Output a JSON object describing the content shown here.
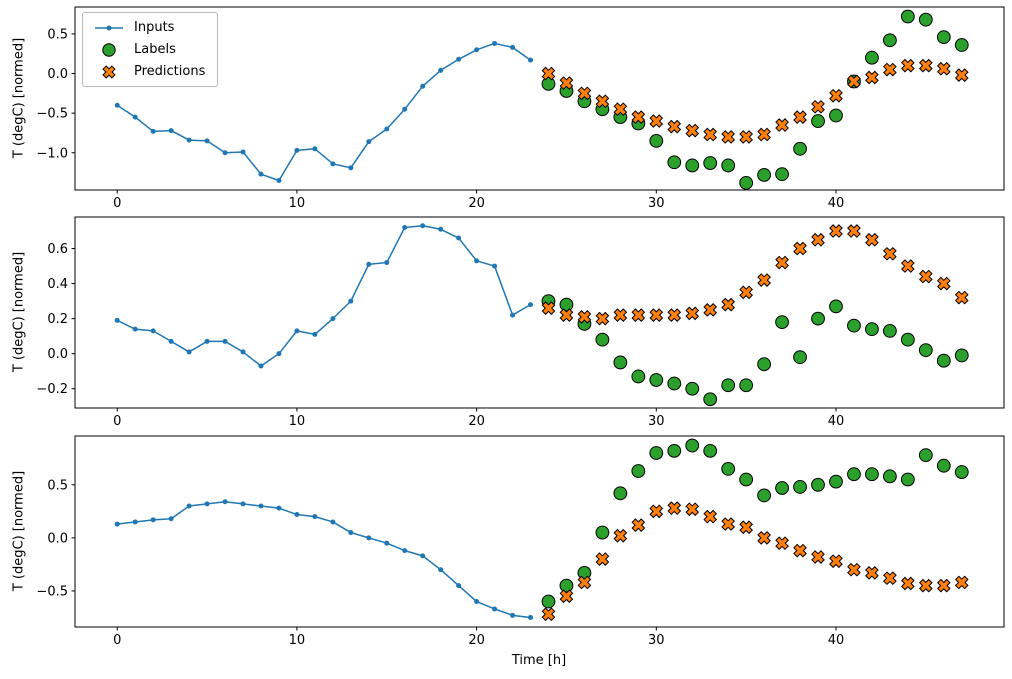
{
  "figure": {
    "background": "#ffffff",
    "frame_color": "#000000"
  },
  "legend": {
    "position": "upper left",
    "items": [
      {
        "label": "Inputs",
        "color": "#1f77b4",
        "marker": "line-dot"
      },
      {
        "label": "Labels",
        "color": "#2ca02c",
        "marker": "circle"
      },
      {
        "label": "Predictions",
        "color": "#ff7f0e",
        "marker": "X"
      }
    ]
  },
  "chart_data": [
    {
      "type": "line",
      "title": "",
      "xlabel": "",
      "ylabel": "T (degC) [normed]",
      "xlim": [
        -2.35,
        49.35
      ],
      "ylim": [
        -1.47,
        0.84
      ],
      "xticks": [
        0,
        10,
        20,
        30,
        40
      ],
      "xticklabels": [
        "0",
        "10",
        "20",
        "30",
        "40"
      ],
      "yticks": [
        -1.0,
        -0.5,
        0.0,
        0.5
      ],
      "yticklabels": [
        "−1.0",
        "−0.5",
        "0.0",
        "0.5"
      ],
      "grid": false,
      "series": [
        {
          "name": "Inputs",
          "type": "line",
          "marker": "dot",
          "color": "#1f77b4",
          "x": [
            0,
            1,
            2,
            3,
            4,
            5,
            6,
            7,
            8,
            9,
            10,
            11,
            12,
            13,
            14,
            15,
            16,
            17,
            18,
            19,
            20,
            21,
            22,
            23
          ],
          "y": [
            -0.4,
            -0.55,
            -0.73,
            -0.72,
            -0.84,
            -0.85,
            -1.0,
            -0.99,
            -1.27,
            -1.35,
            -0.97,
            -0.95,
            -1.14,
            -1.19,
            -0.86,
            -0.7,
            -0.45,
            -0.16,
            0.04,
            0.18,
            0.3,
            0.38,
            0.33,
            0.17
          ]
        },
        {
          "name": "Labels",
          "type": "scatter",
          "marker": "circle",
          "color": "#2ca02c",
          "x": [
            24,
            25,
            26,
            27,
            28,
            29,
            30,
            31,
            32,
            33,
            34,
            35,
            36,
            37,
            38,
            39,
            40,
            41,
            42,
            43,
            44,
            45,
            46,
            47
          ],
          "y": [
            -0.13,
            -0.22,
            -0.35,
            -0.45,
            -0.55,
            -0.63,
            -0.85,
            -1.12,
            -1.16,
            -1.13,
            -1.16,
            -1.38,
            -1.28,
            -1.27,
            -0.95,
            -0.6,
            -0.53,
            -0.1,
            0.2,
            0.42,
            0.72,
            0.68,
            0.46,
            0.36
          ]
        },
        {
          "name": "Predictions",
          "type": "scatter",
          "marker": "X",
          "color": "#ff7f0e",
          "x": [
            24,
            25,
            26,
            27,
            28,
            29,
            30,
            31,
            32,
            33,
            34,
            35,
            36,
            37,
            38,
            39,
            40,
            41,
            42,
            43,
            44,
            45,
            46,
            47
          ],
          "y": [
            0.0,
            -0.12,
            -0.25,
            -0.35,
            -0.45,
            -0.55,
            -0.6,
            -0.67,
            -0.72,
            -0.77,
            -0.8,
            -0.8,
            -0.77,
            -0.65,
            -0.55,
            -0.42,
            -0.28,
            -0.1,
            -0.05,
            0.05,
            0.1,
            0.1,
            0.06,
            -0.02
          ]
        }
      ]
    },
    {
      "type": "line",
      "title": "",
      "xlabel": "",
      "ylabel": "T (degC) [normed]",
      "xlim": [
        -2.35,
        49.35
      ],
      "ylim": [
        -0.31,
        0.78
      ],
      "xticks": [
        0,
        10,
        20,
        30,
        40
      ],
      "xticklabels": [
        "0",
        "10",
        "20",
        "30",
        "40"
      ],
      "yticks": [
        -0.2,
        0.0,
        0.2,
        0.4,
        0.6
      ],
      "yticklabels": [
        "−0.2",
        "0.0",
        "0.2",
        "0.4",
        "0.6"
      ],
      "grid": false,
      "series": [
        {
          "name": "Inputs",
          "type": "line",
          "marker": "dot",
          "color": "#1f77b4",
          "x": [
            0,
            1,
            2,
            3,
            4,
            5,
            6,
            7,
            8,
            9,
            10,
            11,
            12,
            13,
            14,
            15,
            16,
            17,
            18,
            19,
            20,
            21,
            22,
            23
          ],
          "y": [
            0.19,
            0.14,
            0.13,
            0.07,
            0.01,
            0.07,
            0.07,
            0.01,
            -0.07,
            0.0,
            0.13,
            0.11,
            0.2,
            0.3,
            0.51,
            0.52,
            0.72,
            0.73,
            0.71,
            0.66,
            0.53,
            0.5,
            0.22,
            0.28
          ]
        },
        {
          "name": "Labels",
          "type": "scatter",
          "marker": "circle",
          "color": "#2ca02c",
          "x": [
            24,
            25,
            26,
            27,
            28,
            29,
            30,
            31,
            32,
            33,
            34,
            35,
            36,
            37,
            38,
            39,
            40,
            41,
            42,
            43,
            44,
            45,
            46,
            47
          ],
          "y": [
            0.3,
            0.28,
            0.17,
            0.08,
            -0.05,
            -0.13,
            -0.15,
            -0.17,
            -0.2,
            -0.26,
            -0.18,
            -0.18,
            -0.06,
            0.18,
            -0.02,
            0.2,
            0.27,
            0.16,
            0.14,
            0.13,
            0.08,
            0.02,
            -0.04,
            -0.01
          ]
        },
        {
          "name": "Predictions",
          "type": "scatter",
          "marker": "X",
          "color": "#ff7f0e",
          "x": [
            24,
            25,
            26,
            27,
            28,
            29,
            30,
            31,
            32,
            33,
            34,
            35,
            36,
            37,
            38,
            39,
            40,
            41,
            42,
            43,
            44,
            45,
            46,
            47
          ],
          "y": [
            0.26,
            0.22,
            0.21,
            0.2,
            0.22,
            0.22,
            0.22,
            0.22,
            0.23,
            0.25,
            0.28,
            0.35,
            0.42,
            0.52,
            0.6,
            0.65,
            0.7,
            0.7,
            0.65,
            0.57,
            0.5,
            0.44,
            0.4,
            0.32
          ]
        }
      ]
    },
    {
      "type": "line",
      "title": "",
      "xlabel": "Time [h]",
      "ylabel": "T (degC) [normed]",
      "xlim": [
        -2.35,
        49.35
      ],
      "ylim": [
        -0.84,
        0.96
      ],
      "xticks": [
        0,
        10,
        20,
        30,
        40
      ],
      "xticklabels": [
        "0",
        "10",
        "20",
        "30",
        "40"
      ],
      "yticks": [
        -0.5,
        0.0,
        0.5
      ],
      "yticklabels": [
        "−0.5",
        "0.0",
        "0.5"
      ],
      "grid": false,
      "series": [
        {
          "name": "Inputs",
          "type": "line",
          "marker": "dot",
          "color": "#1f77b4",
          "x": [
            0,
            1,
            2,
            3,
            4,
            5,
            6,
            7,
            8,
            9,
            10,
            11,
            12,
            13,
            14,
            15,
            16,
            17,
            18,
            19,
            20,
            21,
            22,
            23
          ],
          "y": [
            0.13,
            0.15,
            0.17,
            0.18,
            0.3,
            0.32,
            0.34,
            0.32,
            0.3,
            0.28,
            0.22,
            0.2,
            0.15,
            0.05,
            0.0,
            -0.05,
            -0.12,
            -0.17,
            -0.3,
            -0.45,
            -0.6,
            -0.67,
            -0.73,
            -0.75
          ]
        },
        {
          "name": "Labels",
          "type": "scatter",
          "marker": "circle",
          "color": "#2ca02c",
          "x": [
            24,
            25,
            26,
            27,
            28,
            29,
            30,
            31,
            32,
            33,
            34,
            35,
            36,
            37,
            38,
            39,
            40,
            41,
            42,
            43,
            44,
            45,
            46,
            47
          ],
          "y": [
            -0.6,
            -0.45,
            -0.33,
            0.05,
            0.42,
            0.63,
            0.8,
            0.82,
            0.87,
            0.82,
            0.65,
            0.55,
            0.4,
            0.47,
            0.48,
            0.5,
            0.53,
            0.6,
            0.6,
            0.58,
            0.55,
            0.78,
            0.68,
            0.62
          ]
        },
        {
          "name": "Predictions",
          "type": "scatter",
          "marker": "X",
          "color": "#ff7f0e",
          "x": [
            24,
            25,
            26,
            27,
            28,
            29,
            30,
            31,
            32,
            33,
            34,
            35,
            36,
            37,
            38,
            39,
            40,
            41,
            42,
            43,
            44,
            45,
            46,
            47
          ],
          "y": [
            -0.72,
            -0.55,
            -0.42,
            -0.2,
            0.02,
            0.12,
            0.25,
            0.28,
            0.27,
            0.2,
            0.13,
            0.1,
            0.0,
            -0.05,
            -0.12,
            -0.18,
            -0.22,
            -0.3,
            -0.33,
            -0.38,
            -0.43,
            -0.45,
            -0.45,
            -0.42
          ]
        }
      ]
    }
  ]
}
